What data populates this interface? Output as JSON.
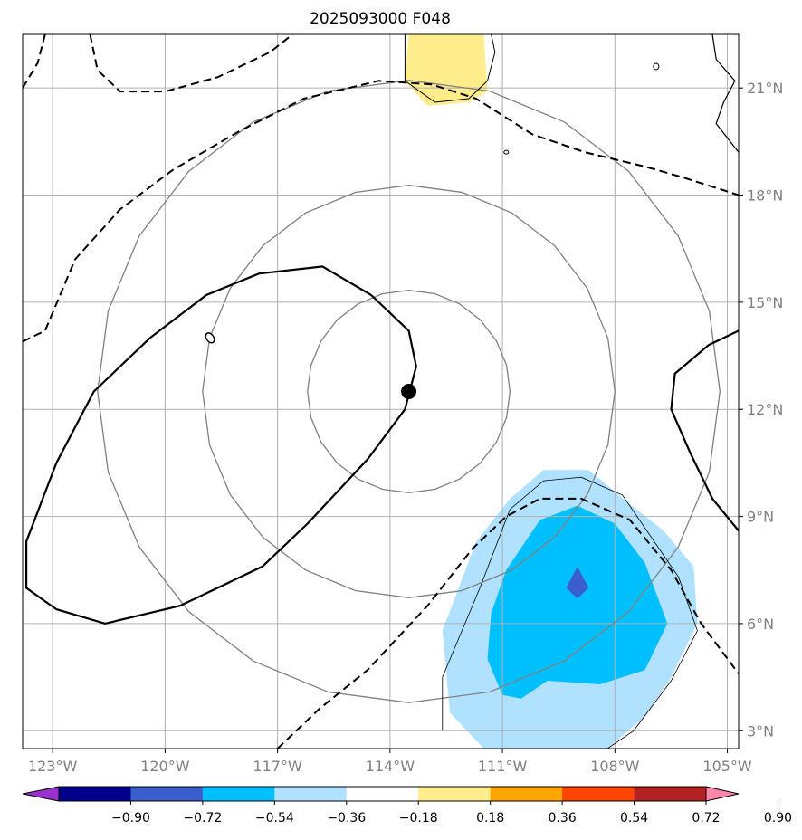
{
  "chart_data": {
    "type": "map",
    "title": "2025093000 F048",
    "lon_range": [
      -123.8,
      -104.7
    ],
    "lat_range": [
      2.5,
      22.5
    ],
    "lon_ticks": [
      -123,
      -120,
      -117,
      -114,
      -111,
      -108,
      -105
    ],
    "lat_ticks": [
      3,
      6,
      9,
      12,
      15,
      18,
      21
    ],
    "lon_tick_labels": [
      "123°W",
      "120°W",
      "117°W",
      "114°W",
      "111°W",
      "108°W",
      "105°W"
    ],
    "lat_tick_labels": [
      "3°N",
      "6°N",
      "9°N",
      "12°N",
      "15°N",
      "18°N",
      "21°N"
    ],
    "grid": true,
    "storm_center": {
      "lon": -113.5,
      "lat": 12.5
    },
    "range_rings_deg": [
      2.7,
      5.5,
      8.3
    ],
    "colorbar": {
      "levels": [
        -0.9,
        -0.72,
        -0.54,
        -0.36,
        -0.18,
        0.18,
        0.36,
        0.54,
        0.72,
        0.9
      ],
      "tick_labels": [
        "−0.90",
        "−0.72",
        "−0.54",
        "−0.36",
        "−0.18",
        "0.18",
        "0.36",
        "0.54",
        "0.72",
        "0.90"
      ],
      "colors": [
        "#9932cc",
        "#00008b",
        "#3a5fcd",
        "#00bfff",
        "#b0e2ff",
        "#ffffff",
        "#ffec8b",
        "#ffa500",
        "#ff4500",
        "#b22222",
        "#ff88aa"
      ],
      "extend": "both"
    },
    "filled_regions": [
      {
        "level": "-0.36 to -0.18",
        "color": "#b0e2ff",
        "points": [
          [
            -112.4,
            3.5
          ],
          [
            -112.6,
            5.8
          ],
          [
            -111.7,
            8.3
          ],
          [
            -110.8,
            9.5
          ],
          [
            -109.9,
            10.3
          ],
          [
            -108.7,
            10.3
          ],
          [
            -107.9,
            9.6
          ],
          [
            -106.7,
            8.6
          ],
          [
            -105.9,
            7.6
          ],
          [
            -105.8,
            6.0
          ],
          [
            -106.5,
            4.5
          ],
          [
            -107.2,
            3.4
          ],
          [
            -108.2,
            2.5
          ],
          [
            -111.5,
            2.5
          ]
        ]
      },
      {
        "level": "-0.54 to -0.36",
        "color": "#00bfff",
        "points": [
          [
            -111.0,
            4.0
          ],
          [
            -111.4,
            5.0
          ],
          [
            -111.3,
            6.3
          ],
          [
            -110.9,
            7.5
          ],
          [
            -110.0,
            8.9
          ],
          [
            -109.0,
            9.3
          ],
          [
            -108.0,
            8.8
          ],
          [
            -107.2,
            7.7
          ],
          [
            -106.6,
            6.0
          ],
          [
            -107.2,
            4.7
          ],
          [
            -108.4,
            4.3
          ],
          [
            -109.8,
            4.4
          ],
          [
            -110.5,
            3.9
          ]
        ]
      },
      {
        "level": "-0.72 to -0.54",
        "color": "#3a5fcd",
        "points": [
          [
            -109.3,
            7.0
          ],
          [
            -109.0,
            7.6
          ],
          [
            -108.7,
            7.0
          ],
          [
            -109.0,
            6.7
          ]
        ]
      },
      {
        "level": "0.18 to 0.36",
        "color": "#ffec8b",
        "points": [
          [
            -113.5,
            22.5
          ],
          [
            -113.6,
            21.2
          ],
          [
            -113.0,
            20.5
          ],
          [
            -111.9,
            20.6
          ],
          [
            -111.4,
            20.9
          ],
          [
            -111.5,
            22.5
          ]
        ]
      }
    ]
  }
}
